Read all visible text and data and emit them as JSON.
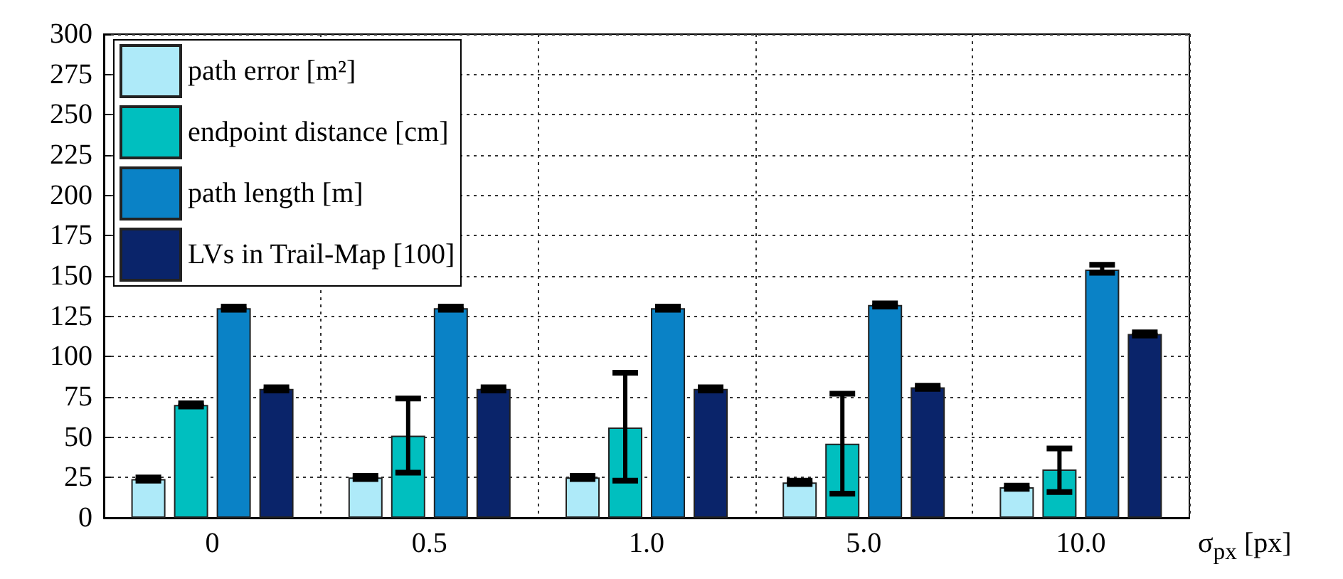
{
  "chart_data": {
    "type": "bar",
    "xlabel": "σ$_{px}$ [px]",
    "categories": [
      "0",
      "0.5",
      "1.0",
      "5.0",
      "10.0"
    ],
    "series": [
      {
        "name": "path error [m²]",
        "color": "#aeeaf9",
        "values": [
          24,
          25,
          25,
          22,
          19
        ],
        "errors": [
          1,
          1,
          1,
          1,
          1
        ]
      },
      {
        "name": "endpoint distance [cm]",
        "color": "#00bfbf",
        "values": [
          70,
          51,
          56,
          46,
          30
        ],
        "errors": [
          1,
          [
            28,
            74
          ],
          [
            23,
            90
          ],
          [
            15,
            77
          ],
          [
            16,
            43
          ]
        ]
      },
      {
        "name": "path length [m]",
        "color": "#0a82c6",
        "values": [
          130,
          130,
          130,
          132,
          154
        ],
        "errors": [
          1,
          1,
          1,
          1,
          [
            152,
            157
          ]
        ]
      },
      {
        "name": "LVs in Trail-Map [100]",
        "color": "#0a246a",
        "values": [
          80,
          80,
          80,
          81,
          114
        ],
        "errors": [
          1,
          1,
          1,
          1,
          1
        ]
      }
    ],
    "ylim": [
      0,
      300
    ],
    "yticks": [
      0,
      25,
      50,
      75,
      100,
      125,
      150,
      175,
      200,
      225,
      250,
      275,
      300
    ],
    "grid": true,
    "legend": "top left"
  }
}
